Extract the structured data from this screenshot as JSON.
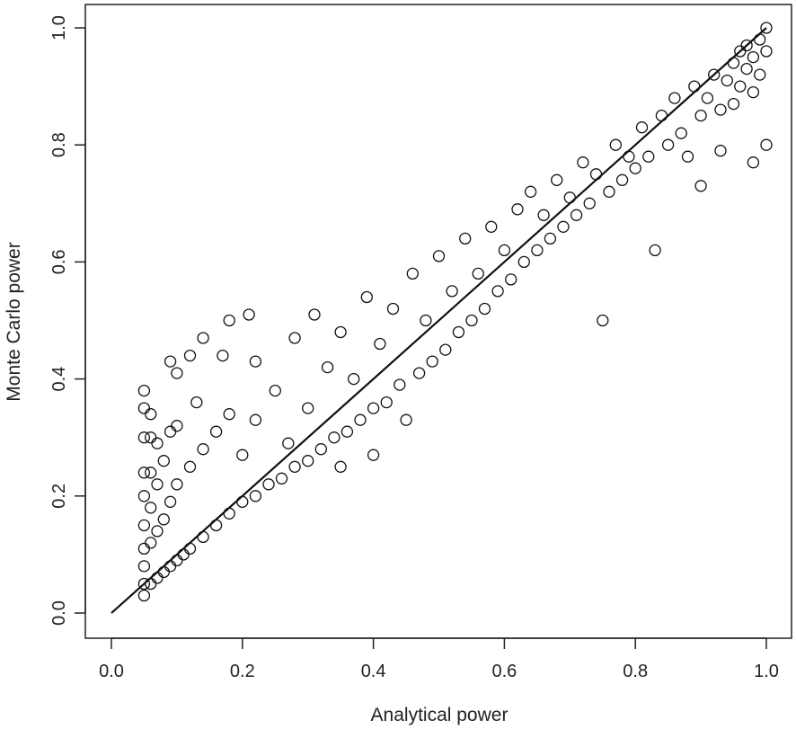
{
  "chart_data": {
    "type": "scatter",
    "xlabel": "Analytical power",
    "ylabel": "Monte Carlo power",
    "xlim": [
      0.0,
      1.0
    ],
    "ylim": [
      0.0,
      1.0
    ],
    "xticks": [
      "0.0",
      "0.2",
      "0.4",
      "0.6",
      "0.8",
      "1.0"
    ],
    "yticks": [
      "0.0",
      "0.2",
      "0.4",
      "0.6",
      "0.8",
      "1.0"
    ],
    "grid": false,
    "marker": "open-circle",
    "reference_line": {
      "from": [
        0,
        0
      ],
      "to": [
        1,
        1
      ]
    },
    "series": [
      {
        "points": [
          [
            0.05,
            0.03
          ],
          [
            0.05,
            0.05
          ],
          [
            0.05,
            0.08
          ],
          [
            0.05,
            0.11
          ],
          [
            0.05,
            0.15
          ],
          [
            0.05,
            0.2
          ],
          [
            0.05,
            0.24
          ],
          [
            0.05,
            0.3
          ],
          [
            0.05,
            0.35
          ],
          [
            0.05,
            0.38
          ],
          [
            0.06,
            0.05
          ],
          [
            0.06,
            0.12
          ],
          [
            0.06,
            0.18
          ],
          [
            0.06,
            0.24
          ],
          [
            0.06,
            0.3
          ],
          [
            0.06,
            0.34
          ],
          [
            0.07,
            0.06
          ],
          [
            0.07,
            0.14
          ],
          [
            0.07,
            0.22
          ],
          [
            0.07,
            0.29
          ],
          [
            0.08,
            0.07
          ],
          [
            0.08,
            0.16
          ],
          [
            0.08,
            0.26
          ],
          [
            0.09,
            0.08
          ],
          [
            0.09,
            0.19
          ],
          [
            0.09,
            0.31
          ],
          [
            0.09,
            0.43
          ],
          [
            0.1,
            0.09
          ],
          [
            0.1,
            0.22
          ],
          [
            0.1,
            0.32
          ],
          [
            0.1,
            0.41
          ],
          [
            0.11,
            0.1
          ],
          [
            0.12,
            0.11
          ],
          [
            0.12,
            0.25
          ],
          [
            0.12,
            0.44
          ],
          [
            0.13,
            0.36
          ],
          [
            0.14,
            0.13
          ],
          [
            0.14,
            0.28
          ],
          [
            0.14,
            0.47
          ],
          [
            0.16,
            0.15
          ],
          [
            0.16,
            0.31
          ],
          [
            0.17,
            0.44
          ],
          [
            0.18,
            0.17
          ],
          [
            0.18,
            0.34
          ],
          [
            0.18,
            0.5
          ],
          [
            0.2,
            0.19
          ],
          [
            0.2,
            0.27
          ],
          [
            0.21,
            0.51
          ],
          [
            0.22,
            0.2
          ],
          [
            0.22,
            0.33
          ],
          [
            0.22,
            0.43
          ],
          [
            0.24,
            0.22
          ],
          [
            0.25,
            0.38
          ],
          [
            0.26,
            0.23
          ],
          [
            0.27,
            0.29
          ],
          [
            0.28,
            0.25
          ],
          [
            0.28,
            0.47
          ],
          [
            0.3,
            0.26
          ],
          [
            0.3,
            0.35
          ],
          [
            0.31,
            0.51
          ],
          [
            0.32,
            0.28
          ],
          [
            0.33,
            0.42
          ],
          [
            0.34,
            0.3
          ],
          [
            0.35,
            0.25
          ],
          [
            0.35,
            0.48
          ],
          [
            0.36,
            0.31
          ],
          [
            0.37,
            0.4
          ],
          [
            0.38,
            0.33
          ],
          [
            0.39,
            0.54
          ],
          [
            0.4,
            0.35
          ],
          [
            0.4,
            0.27
          ],
          [
            0.41,
            0.46
          ],
          [
            0.42,
            0.36
          ],
          [
            0.43,
            0.52
          ],
          [
            0.44,
            0.39
          ],
          [
            0.45,
            0.33
          ],
          [
            0.46,
            0.58
          ],
          [
            0.47,
            0.41
          ],
          [
            0.48,
            0.5
          ],
          [
            0.49,
            0.43
          ],
          [
            0.5,
            0.61
          ],
          [
            0.51,
            0.45
          ],
          [
            0.52,
            0.55
          ],
          [
            0.53,
            0.48
          ],
          [
            0.54,
            0.64
          ],
          [
            0.55,
            0.5
          ],
          [
            0.56,
            0.58
          ],
          [
            0.57,
            0.52
          ],
          [
            0.58,
            0.66
          ],
          [
            0.59,
            0.55
          ],
          [
            0.6,
            0.62
          ],
          [
            0.61,
            0.57
          ],
          [
            0.62,
            0.69
          ],
          [
            0.63,
            0.6
          ],
          [
            0.64,
            0.72
          ],
          [
            0.65,
            0.62
          ],
          [
            0.66,
            0.68
          ],
          [
            0.67,
            0.64
          ],
          [
            0.68,
            0.74
          ],
          [
            0.69,
            0.66
          ],
          [
            0.7,
            0.71
          ],
          [
            0.71,
            0.68
          ],
          [
            0.72,
            0.77
          ],
          [
            0.73,
            0.7
          ],
          [
            0.74,
            0.75
          ],
          [
            0.75,
            0.5
          ],
          [
            0.76,
            0.72
          ],
          [
            0.77,
            0.8
          ],
          [
            0.78,
            0.74
          ],
          [
            0.79,
            0.78
          ],
          [
            0.8,
            0.76
          ],
          [
            0.81,
            0.83
          ],
          [
            0.82,
            0.78
          ],
          [
            0.83,
            0.62
          ],
          [
            0.84,
            0.85
          ],
          [
            0.85,
            0.8
          ],
          [
            0.86,
            0.88
          ],
          [
            0.87,
            0.82
          ],
          [
            0.88,
            0.78
          ],
          [
            0.89,
            0.9
          ],
          [
            0.9,
            0.85
          ],
          [
            0.9,
            0.73
          ],
          [
            0.91,
            0.88
          ],
          [
            0.92,
            0.92
          ],
          [
            0.93,
            0.86
          ],
          [
            0.93,
            0.79
          ],
          [
            0.94,
            0.91
          ],
          [
            0.95,
            0.94
          ],
          [
            0.95,
            0.87
          ],
          [
            0.96,
            0.96
          ],
          [
            0.96,
            0.9
          ],
          [
            0.97,
            0.93
          ],
          [
            0.97,
            0.97
          ],
          [
            0.98,
            0.89
          ],
          [
            0.98,
            0.95
          ],
          [
            0.98,
            0.77
          ],
          [
            0.99,
            0.98
          ],
          [
            0.99,
            0.92
          ],
          [
            1.0,
            1.0
          ],
          [
            1.0,
            0.96
          ],
          [
            1.0,
            0.8
          ]
        ]
      }
    ]
  }
}
